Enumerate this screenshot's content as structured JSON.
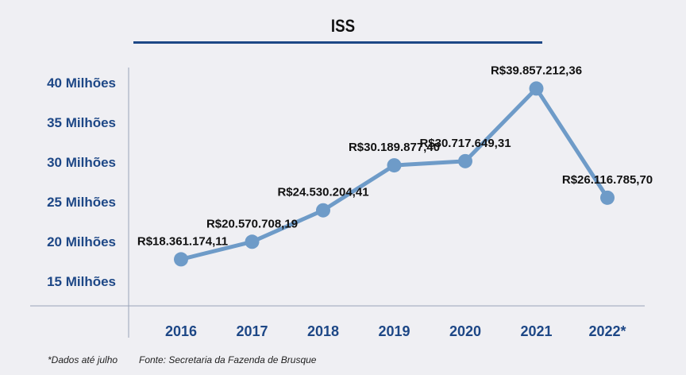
{
  "chart_data": {
    "type": "line",
    "title": "ISS",
    "xlabel": "",
    "ylabel": "",
    "categories": [
      "2016",
      "2017",
      "2018",
      "2019",
      "2020",
      "2021",
      "2022*"
    ],
    "values": [
      18361174.11,
      20570708.19,
      24530204.41,
      30189877.4,
      30717649.31,
      39857212.36,
      26116785.7
    ],
    "data_labels": [
      "R$18.361.174,11",
      "R$20.570.708,19",
      "R$24.530.204,41",
      "R$30.189.877,40",
      "R$30.717.649,31",
      "R$39.857.212,36",
      "R$26.116.785,70"
    ],
    "yticks": [
      15,
      20,
      25,
      30,
      35,
      40
    ],
    "ytick_labels": [
      "15 Milhões",
      "20 Milhões",
      "25 Milhões",
      "30 Milhões",
      "35 Milhões",
      "40 Milhões"
    ],
    "ylim_millions": [
      12,
      42
    ],
    "grid": false,
    "colors": {
      "line": "#6e9bc8",
      "axis_labels": "#1d4786",
      "title_rule": "#1d4786"
    }
  },
  "footnote": "*Dados até julho",
  "source": "Fonte: Secretaria da Fazenda de Brusque"
}
